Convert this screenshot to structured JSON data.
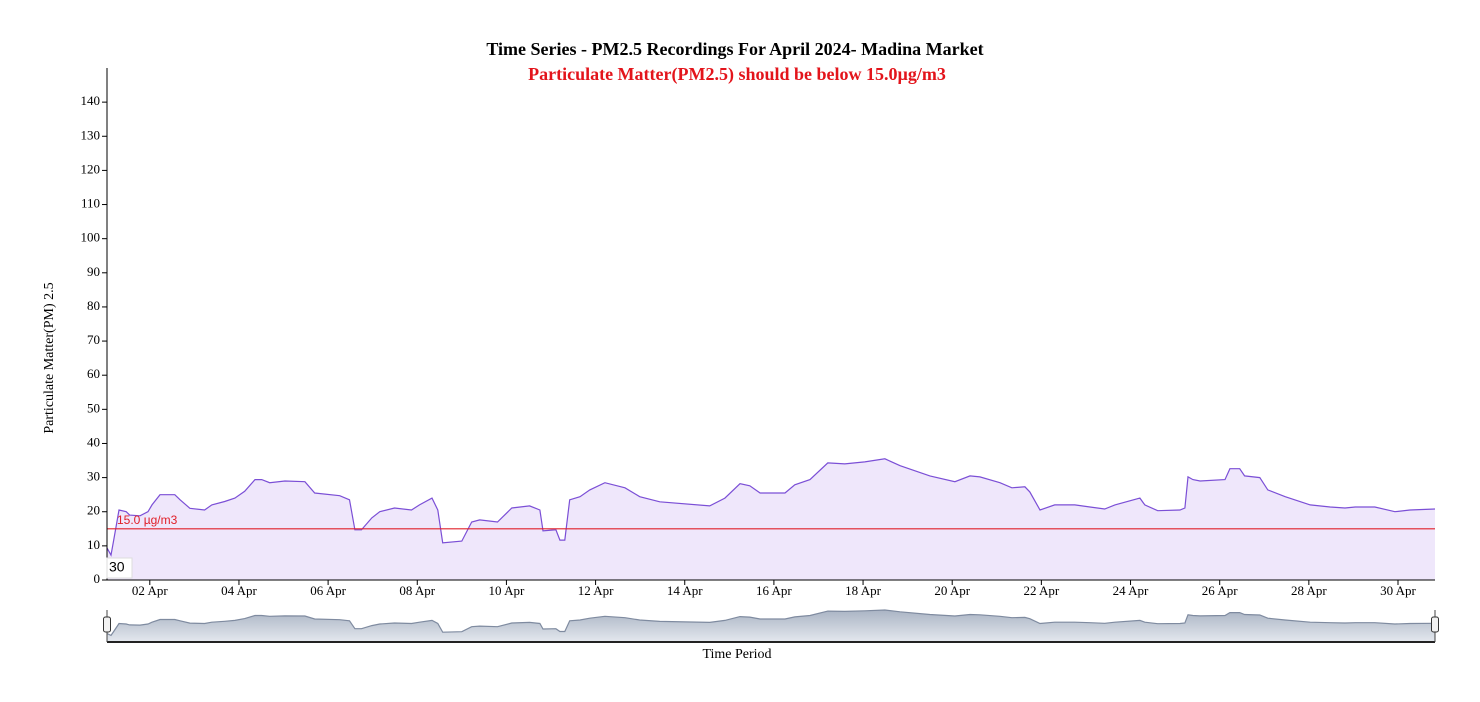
{
  "chart_data": {
    "type": "area",
    "title": "Time Series - PM2.5 Recordings For April 2024- Madina Market",
    "subtitle": "Particulate Matter(PM2.5) should be below 15.0µg/m3",
    "y_label": "Particulate Matter(PM) 2.5",
    "x_label": "Time Period",
    "badge": "30",
    "color": "#7b4fd6",
    "fill": "#efe7fb",
    "threshold": {
      "value": 15,
      "label": "15.0 µg/m3",
      "color": "#e0202a"
    },
    "x": [
      1.04,
      1.13,
      1.19,
      1.31,
      1.47,
      1.55,
      1.78,
      1.96,
      2.05,
      2.23,
      2.56,
      2.68,
      2.9,
      3.23,
      3.39,
      3.68,
      3.91,
      4.13,
      4.36,
      4.51,
      4.69,
      5.03,
      5.48,
      5.7,
      6.26,
      6.48,
      6.6,
      6.75,
      6.98,
      7.16,
      7.49,
      7.87,
      8.05,
      8.33,
      8.46,
      8.57,
      9.0,
      9.22,
      9.4,
      9.8,
      10.12,
      10.52,
      10.75,
      10.82,
      11.11,
      11.2,
      11.31,
      11.42,
      11.65,
      11.87,
      12.21,
      12.66,
      12.99,
      13.44,
      14.56,
      14.9,
      15.24,
      15.46,
      15.69,
      16.25,
      16.47,
      16.81,
      17.21,
      17.59,
      18.04,
      18.49,
      18.83,
      19.5,
      20.06,
      20.4,
      20.62,
      21.07,
      21.34,
      21.63,
      21.74,
      21.97,
      22.3,
      22.75,
      23.09,
      23.42,
      23.65,
      24.21,
      24.32,
      24.61,
      25.11,
      25.22,
      25.29,
      25.4,
      25.56,
      26.12,
      26.23,
      26.45,
      26.56,
      26.9,
      27.08,
      27.47,
      28.03,
      28.48,
      28.81,
      29.04,
      29.48,
      29.93,
      30.27,
      30.83
    ],
    "values": [
      9.4,
      7.3,
      11.7,
      20.5,
      20,
      19,
      18.8,
      20,
      22,
      25,
      25,
      23.5,
      21,
      20.5,
      22,
      23,
      24,
      26,
      29.4,
      29.4,
      28.5,
      29,
      28.8,
      25.5,
      24.7,
      23.5,
      14.7,
      14.7,
      18.2,
      20,
      21.1,
      20.5,
      22,
      24,
      20.5,
      10.9,
      11.4,
      17,
      17.6,
      17,
      21.1,
      21.7,
      20.5,
      14.4,
      14.7,
      11.7,
      11.7,
      23.5,
      24.4,
      26.4,
      28.5,
      27,
      24.4,
      22.9,
      21.7,
      24,
      28.2,
      27.6,
      25.5,
      25.5,
      27.9,
      29.4,
      34.3,
      34,
      34.6,
      35.5,
      33.5,
      30.5,
      28.8,
      30.5,
      30.2,
      28.5,
      27,
      27.3,
      25.8,
      20.5,
      22,
      22,
      21.4,
      20.8,
      22,
      24,
      22,
      20.3,
      20.5,
      21.1,
      30.2,
      29.4,
      29,
      29.4,
      32.6,
      32.6,
      30.5,
      30,
      26.4,
      24.4,
      22,
      21.4,
      21.1,
      21.4,
      21.4,
      20,
      20.5,
      20.8
    ],
    "xlim": [
      1.04,
      30.83
    ],
    "xticks": [
      {
        "value": 2,
        "label": "02 Apr"
      },
      {
        "value": 4,
        "label": "04 Apr"
      },
      {
        "value": 6,
        "label": "06 Apr"
      },
      {
        "value": 8,
        "label": "08 Apr"
      },
      {
        "value": 10,
        "label": "10 Apr"
      },
      {
        "value": 12,
        "label": "12 Apr"
      },
      {
        "value": 14,
        "label": "14 Apr"
      },
      {
        "value": 16,
        "label": "16 Apr"
      },
      {
        "value": 18,
        "label": "18 Apr"
      },
      {
        "value": 20,
        "label": "20 Apr"
      },
      {
        "value": 22,
        "label": "22 Apr"
      },
      {
        "value": 24,
        "label": "24 Apr"
      },
      {
        "value": 26,
        "label": "26 Apr"
      },
      {
        "value": 28,
        "label": "28 Apr"
      },
      {
        "value": 30,
        "label": "30 Apr"
      }
    ],
    "ylim": [
      0,
      150
    ],
    "yticks": [
      0,
      10,
      20,
      30,
      40,
      50,
      60,
      70,
      80,
      90,
      100,
      110,
      120,
      130,
      140
    ]
  }
}
